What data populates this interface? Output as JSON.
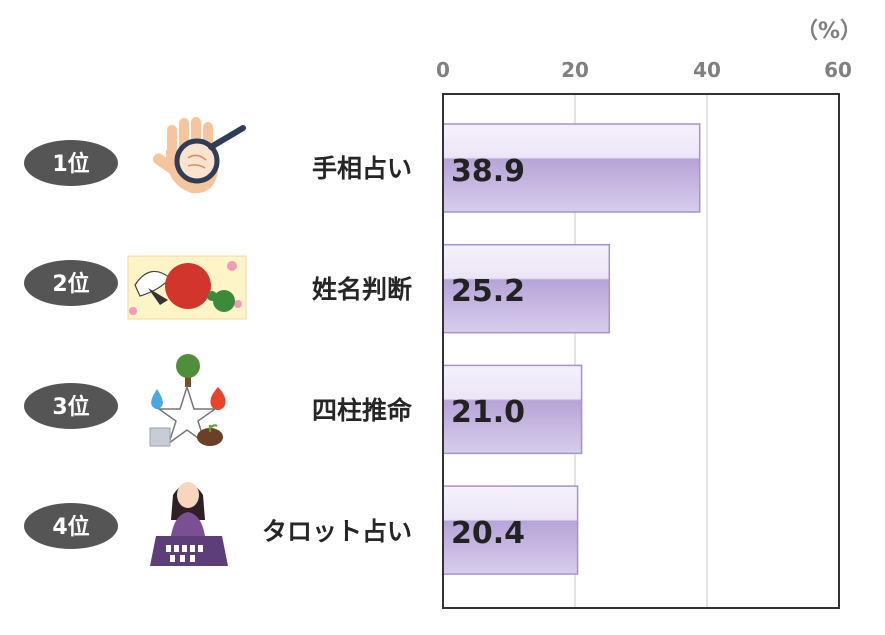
{
  "chart_data": {
    "type": "bar",
    "orientation": "horizontal",
    "unit": "（%）",
    "xlim": [
      0,
      60
    ],
    "xticks": [
      "0",
      "20",
      "40",
      "60"
    ],
    "grid": true,
    "categories": [
      "手相占い",
      "姓名判断",
      "四柱推命",
      "タロット占い"
    ],
    "ranks": [
      "1位",
      "2位",
      "3位",
      "4位"
    ],
    "values": [
      38.9,
      25.2,
      21.0,
      20.4
    ],
    "value_labels": [
      "38.9",
      "25.2",
      "21.0",
      "20.4"
    ]
  },
  "colors": {
    "bar_top": "#f3eefa",
    "bar_mid": "#b9a8da",
    "bar_bottom": "#d6cbea",
    "bar_border": "#a892cc",
    "badge": "#5a5a5a",
    "frame": "#333333",
    "grid": "#bfbfbf"
  },
  "icons": [
    "palm-with-magnifier-icon",
    "naming-card-icon",
    "five-elements-icon",
    "tarot-reader-icon"
  ]
}
